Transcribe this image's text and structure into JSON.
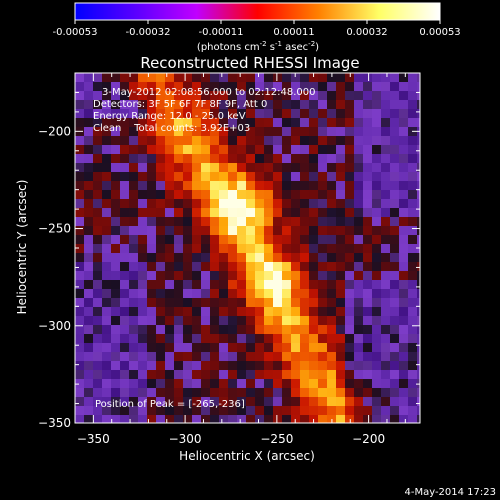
{
  "colorbar": {
    "ticks": [
      "-0.00053",
      "-0.00032",
      "-0.00011",
      "0.00011",
      "0.00032",
      "0.00053"
    ],
    "stops": [
      "#0000ff",
      "#5a00ff",
      "#c000ff",
      "#ff0000",
      "#ff8000",
      "#ffff66",
      "#ffffff"
    ],
    "units_label": "(photons cm",
    "units_sup1": "-2",
    "units_mid": " s",
    "units_sup2": "-1",
    "units_end": " asec",
    "units_sup3": "-2",
    "units_close": ")"
  },
  "chart_data": {
    "type": "heatmap",
    "title": "Reconstructed RHESSI Image",
    "xlabel": "Heliocentric X (arcsec)",
    "ylabel": "Heliocentric Y (arcsec)",
    "xlim": [
      -360,
      -172
    ],
    "ylim": [
      -350,
      -170
    ],
    "xticks": [
      -350,
      -300,
      -250,
      -200
    ],
    "yticks": [
      -200,
      -250,
      -300,
      -350
    ],
    "xtick_labels": [
      "−350",
      "−300",
      "−250",
      "−200"
    ],
    "ytick_labels": [
      "−200",
      "−250",
      "−300",
      "−350"
    ],
    "info_lines": [
      "3-May-2012 02:08:56.000 to 02:12:48.000",
      "Detectors: 3F 5F 6F 7F 8F 9F, Att 0",
      "Energy Range: 12.0 - 25.0 keV",
      "Clean    Total counts: 3.92E+03"
    ],
    "peak_label": "Position of Peak = [-265,-236]",
    "peak": [
      -265,
      -236
    ],
    "grid": false
  },
  "footer": {
    "date": "4-May-2014 17:23"
  }
}
